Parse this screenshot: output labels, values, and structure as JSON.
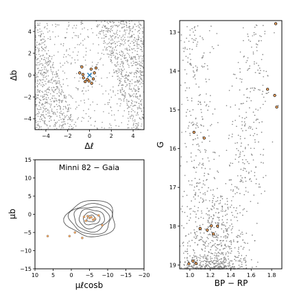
{
  "chart_data": [
    {
      "type": "scatter",
      "panel": "sky",
      "xlabel": "Δℓ",
      "ylabel": "Δb",
      "xlim": [
        -5,
        5
      ],
      "ylim": [
        -5,
        5
      ],
      "x_ticks": [
        "−4",
        "−2",
        "0",
        "2",
        "4"
      ],
      "x_tick_values": [
        -4,
        -2,
        0,
        2,
        4
      ],
      "y_ticks": [
        "−4",
        "−2",
        "0",
        "2",
        "4"
      ],
      "y_tick_values": [
        -4,
        -2,
        0,
        2,
        4
      ],
      "field_color": "#8c8c8c",
      "member_color": "#f0a560",
      "center_marker": {
        "symbol": "×",
        "color": "#1f77b4",
        "x": 0.0,
        "y": 0.0
      },
      "members": [
        {
          "x": -0.7,
          "y": 0.75
        },
        {
          "x": -0.9,
          "y": 0.2
        },
        {
          "x": -0.6,
          "y": 0.05
        },
        {
          "x": -0.4,
          "y": -0.6
        },
        {
          "x": -0.2,
          "y": -0.4
        },
        {
          "x": -0.05,
          "y": -0.55
        },
        {
          "x": 0.2,
          "y": -0.75
        },
        {
          "x": 0.35,
          "y": -0.35
        },
        {
          "x": 0.45,
          "y": 0.2
        },
        {
          "x": 0.15,
          "y": 0.55
        },
        {
          "x": -0.55,
          "y": -0.25
        },
        {
          "x": 0.6,
          "y": 0.65
        }
      ]
    },
    {
      "type": "scatter",
      "panel": "proper-motion",
      "title": "Minni 82  −  Gaia",
      "xlabel": "μℓcosb",
      "ylabel": "μb",
      "xlim": [
        10,
        -20
      ],
      "ylim": [
        -15,
        15
      ],
      "x_ticks": [
        "10",
        "5",
        "0",
        "−5",
        "−10",
        "−15",
        "−20"
      ],
      "x_tick_values": [
        10,
        5,
        0,
        -5,
        -10,
        -15,
        -20
      ],
      "y_ticks": [
        "15",
        "10",
        "5",
        "0",
        "−5",
        "−10",
        "−15"
      ],
      "y_tick_values": [
        15,
        10,
        5,
        0,
        -5,
        -10,
        -15
      ],
      "contour_color": "#555555",
      "member_color": "#f0a560",
      "contour_center": {
        "x": -5.5,
        "y": -1.2
      },
      "contour_radii": [
        {
          "rx": 1.2,
          "ry": 0.9
        },
        {
          "rx": 2.3,
          "ry": 1.7
        },
        {
          "rx": 3.5,
          "ry": 2.6
        },
        {
          "rx": 4.8,
          "ry": 3.4
        },
        {
          "rx": 5.8,
          "ry": 4.2
        },
        {
          "rx": 6.8,
          "ry": 5.0
        }
      ],
      "members": [
        {
          "x": -5.0,
          "y": -1.0
        },
        {
          "x": -4.5,
          "y": -0.5
        },
        {
          "x": -6.0,
          "y": -1.5
        },
        {
          "x": -5.5,
          "y": -0.8
        },
        {
          "x": -3.5,
          "y": -0.7
        },
        {
          "x": -4.0,
          "y": -1.8
        },
        {
          "x": -6.5,
          "y": -1.2
        },
        {
          "x": -7.5,
          "y": -0.3
        },
        {
          "x": -1.0,
          "y": -5.0
        },
        {
          "x": 0.5,
          "y": -6.0
        },
        {
          "x": 6.5,
          "y": -6.0
        },
        {
          "x": -3.0,
          "y": -6.5
        },
        {
          "x": -8.5,
          "y": -3.0
        }
      ]
    },
    {
      "type": "scatter",
      "panel": "cmd",
      "xlabel": "BP − RP",
      "ylabel": "G",
      "xlim": [
        0.9,
        1.9
      ],
      "ylim": [
        19.1,
        12.7
      ],
      "x_ticks": [
        "1.0",
        "1.2",
        "1.4",
        "1.6",
        "1.8"
      ],
      "x_tick_values": [
        1.0,
        1.2,
        1.4,
        1.6,
        1.8
      ],
      "y_ticks": [
        "13",
        "14",
        "15",
        "16",
        "17",
        "18",
        "19"
      ],
      "y_tick_values": [
        13,
        14,
        15,
        16,
        17,
        18,
        19
      ],
      "field_color": "#8c8c8c",
      "member_color": "#f0a560",
      "members": [
        {
          "x": 1.84,
          "y": 12.78
        },
        {
          "x": 1.76,
          "y": 14.47
        },
        {
          "x": 1.83,
          "y": 14.63
        },
        {
          "x": 1.85,
          "y": 14.93
        },
        {
          "x": 1.04,
          "y": 15.58
        },
        {
          "x": 1.14,
          "y": 15.73
        },
        {
          "x": 1.1,
          "y": 18.06
        },
        {
          "x": 1.17,
          "y": 18.1
        },
        {
          "x": 1.21,
          "y": 17.99
        },
        {
          "x": 1.27,
          "y": 18.0
        },
        {
          "x": 1.23,
          "y": 18.2
        },
        {
          "x": 0.99,
          "y": 18.97
        },
        {
          "x": 1.03,
          "y": 18.9
        },
        {
          "x": 1.06,
          "y": 18.96
        }
      ]
    }
  ]
}
